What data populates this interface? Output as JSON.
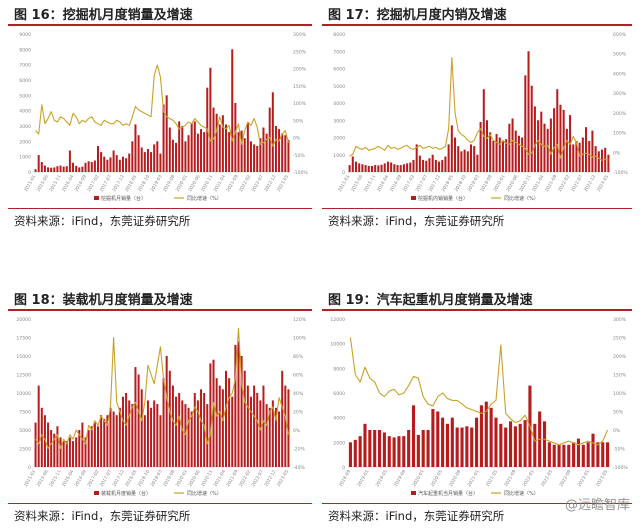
{
  "panels": [
    {
      "title": "图 16：挖掘机月度销量及增速",
      "source": "资料来源：iFind，东莞证券研究所",
      "chart_data": {
        "type": "bar",
        "series": [
          {
            "name": "挖掘机月销量",
            "kind": "bar",
            "axis": "left",
            "values": [
              180,
              1100,
              650,
              420,
              300,
              280,
              300,
              380,
              420,
              350,
              380,
              1400,
              600,
              400,
              300,
              350,
              600,
              700,
              650,
              750,
              1700,
              1300,
              1000,
              800,
              950,
              1400,
              1100,
              800,
              1000,
              900,
              1200,
              2000,
              3100,
              2400,
              1600,
              1300,
              1500,
              1300,
              1800,
              2000,
              1200,
              4400,
              5000,
              2900,
              2100,
              1900,
              3300,
              3000,
              2000,
              2400,
              3200,
              3300,
              2500,
              2800,
              2600,
              5500,
              6800,
              4200,
              3800,
              3100,
              3700,
              3100,
              2600,
              8000,
              4500,
              2600,
              2700,
              2200,
              3200,
              2000,
              1800,
              1700,
              2200,
              2900,
              2500,
              4200,
              5200,
              3000,
              2800,
              2500,
              2400,
              2100
            ]
          },
          {
            "name": "同比增速",
            "kind": "line",
            "axis": "right",
            "values": [
              20,
              10,
              95,
              40,
              55,
              75,
              50,
              45,
              60,
              55,
              45,
              35,
              70,
              60,
              40,
              50,
              45,
              55,
              60,
              45,
              40,
              35,
              50,
              45,
              40,
              40,
              50,
              45,
              35,
              40,
              35,
              60,
              90,
              80,
              75,
              70,
              65,
              60,
              180,
              210,
              175,
              75,
              60,
              55,
              50,
              40,
              25,
              30,
              35,
              45,
              40,
              55,
              45,
              35,
              30,
              25,
              -10,
              -5,
              20,
              60,
              30,
              25,
              35,
              -10,
              15,
              40,
              -20,
              20,
              45,
              35,
              55,
              30,
              -20,
              -15,
              -5,
              0,
              -25,
              -5,
              -10,
              10,
              20,
              -15
            ]
          }
        ],
        "yleft": {
          "ticks": [
            "0",
            "1000",
            "2000",
            "3000",
            "4000",
            "5000",
            "6000",
            "7000",
            "8000",
            "9000"
          ],
          "min": 0,
          "max": 9000
        },
        "yright": {
          "ticks": [
            "-100%",
            "-50%",
            "0%",
            "50%",
            "100%",
            "150%",
            "200%",
            "250%",
            "300%"
          ],
          "min": -100,
          "max": 300
        },
        "xticks": [
          "2015-01",
          "2015-06",
          "2015-11",
          "2016-04",
          "2016-09",
          "2017-02",
          "2017-07",
          "2017-12",
          "2018-05",
          "2018-10",
          "2019-03",
          "2019-08",
          "2020-01",
          "2020-06",
          "2020-11",
          "2021-04",
          "2021-09",
          "2022-02",
          "2022-07",
          "2022-12",
          "2023-05"
        ],
        "legend": [
          "挖掘机月销量（台）",
          "同比增速（%）"
        ],
        "bar_color": "#b71c1c",
        "line_color": "#c9a227"
      }
    },
    {
      "title": "图 17：挖掘机月度内销及增速",
      "source": "资料来源：iFind，东莞证券研究所",
      "chart_data": {
        "type": "bar",
        "series": [
          {
            "name": "挖掘机内销销量",
            "kind": "bar",
            "axis": "left",
            "values": [
              400,
              900,
              600,
              500,
              450,
              400,
              350,
              350,
              400,
              380,
              420,
              500,
              600,
              550,
              450,
              400,
              400,
              450,
              500,
              550,
              700,
              1600,
              950,
              700,
              650,
              800,
              1000,
              700,
              600,
              700,
              900,
              1600,
              2700,
              2000,
              1500,
              1200,
              1300,
              1200,
              1600,
              1500,
              1000,
              2900,
              4800,
              3000,
              2300,
              1800,
              2200,
              2000,
              1800,
              1900,
              2800,
              3100,
              2400,
              2100,
              2000,
              5600,
              7000,
              5000,
              3800,
              3000,
              3500,
              2800,
              2500,
              3100,
              3700,
              4800,
              3900,
              3600,
              2500,
              3300,
              1600,
              1800,
              1700,
              2000,
              2600,
              1800,
              2400,
              1500,
              1200,
              1300,
              1400,
              1000
            ]
          },
          {
            "name": "同比增速",
            "kind": "line",
            "axis": "right",
            "values": [
              -20,
              -10,
              30,
              20,
              15,
              25,
              10,
              15,
              20,
              30,
              20,
              10,
              35,
              20,
              25,
              15,
              20,
              30,
              35,
              20,
              15,
              25,
              35,
              20,
              25,
              30,
              20,
              25,
              15,
              20,
              30,
              120,
              480,
              200,
              110,
              90,
              80,
              60,
              50,
              60,
              100,
              120,
              80,
              70,
              90,
              60,
              50,
              40,
              60,
              45,
              40,
              60,
              50,
              40,
              30,
              20,
              -10,
              -5,
              35,
              60,
              40,
              30,
              35,
              -10,
              25,
              40,
              -30,
              25,
              60,
              40,
              80,
              50,
              -20,
              -10,
              -5,
              -10,
              -25,
              -20,
              -30,
              -40,
              -35,
              -40
            ]
          }
        ],
        "yleft": {
          "ticks": [
            "0",
            "1000",
            "2000",
            "3000",
            "4000",
            "5000",
            "6000",
            "7000",
            "8000"
          ],
          "min": 0,
          "max": 8000
        },
        "yright": {
          "ticks": [
            "-100%",
            "0%",
            "100%",
            "200%",
            "300%",
            "400%",
            "500%",
            "600%"
          ],
          "min": -100,
          "max": 600
        },
        "xticks": [
          "2015-01",
          "2015-06",
          "2015-11",
          "2016-04",
          "2016-09",
          "2017-02",
          "2017-07",
          "2017-12",
          "2018-05",
          "2018-10",
          "2019-03",
          "2019-08",
          "2020-01",
          "2020-06",
          "2020-11",
          "2021-04",
          "2021-09",
          "2022-02",
          "2022-07",
          "2022-12",
          "2023-05"
        ],
        "legend": [
          "挖掘机内销销量（台）",
          "同比增速（%）"
        ],
        "bar_color": "#b71c1c",
        "line_color": "#c9a227"
      }
    },
    {
      "title": "图 18：装载机月度销量及增速",
      "source": "资料来源：iFind，东莞证券研究所",
      "chart_data": {
        "type": "bar",
        "series": [
          {
            "name": "装载机月度销量",
            "kind": "bar",
            "axis": "left",
            "values": [
              6000,
              11000,
              8000,
              7000,
              6000,
              5000,
              4500,
              5500,
              4000,
              3500,
              3500,
              4000,
              3500,
              4000,
              5000,
              6000,
              4000,
              5000,
              5500,
              6000,
              5500,
              7000,
              6500,
              7000,
              8000,
              7500,
              7000,
              8000,
              9500,
              10000,
              9000,
              8500,
              13500,
              12500,
              10500,
              7000,
              9000,
              8000,
              9000,
              8500,
              7000,
              12000,
              15000,
              13000,
              11000,
              9500,
              10000,
              9000,
              8500,
              8000,
              7500,
              10000,
              9000,
              10500,
              10000,
              8500,
              14000,
              14500,
              12000,
              11000,
              10500,
              13000,
              12000,
              9500,
              16500,
              17000,
              15000,
              13000,
              11000,
              9500,
              11000,
              10000,
              9000,
              11000,
              8500,
              8000,
              9000,
              8000,
              7500,
              13000,
              11000,
              10500
            ]
          },
          {
            "name": "同比增速",
            "kind": "line",
            "axis": "right",
            "values": [
              -10,
              -15,
              -5,
              -10,
              -20,
              -15,
              -10,
              -5,
              -20,
              -10,
              -15,
              -5,
              -10,
              0,
              -5,
              -10,
              -15,
              5,
              0,
              10,
              5,
              15,
              10,
              5,
              25,
              100,
              30,
              20,
              10,
              5,
              15,
              25,
              30,
              20,
              10,
              30,
              70,
              60,
              50,
              70,
              90,
              55,
              35,
              20,
              10,
              5,
              15,
              0,
              -5,
              10,
              15,
              25,
              20,
              10,
              5,
              -15,
              -5,
              30,
              15,
              20,
              10,
              25,
              35,
              40,
              55,
              110,
              50,
              30,
              25,
              20,
              15,
              10,
              0,
              10,
              5,
              20,
              25,
              10,
              35,
              25,
              15,
              -5
            ]
          }
        ],
        "yleft": {
          "ticks": [
            "0",
            "2500",
            "5000",
            "7500",
            "10000",
            "12500",
            "15000",
            "17500",
            "20000"
          ],
          "min": 0,
          "max": 20000
        },
        "yright": {
          "ticks": [
            "-40%",
            "-20%",
            "0%",
            "20%",
            "40%",
            "60%",
            "80%",
            "100%",
            "120%"
          ],
          "min": -40,
          "max": 120
        },
        "xticks": [
          "2015-01",
          "2015-06",
          "2015-11",
          "2016-04",
          "2016-09",
          "2017-02",
          "2017-07",
          "2017-12",
          "2018-05",
          "2018-10",
          "2019-03",
          "2019-08",
          "2020-01",
          "2020-06",
          "2020-11",
          "2021-04",
          "2021-09",
          "2022-02",
          "2022-07",
          "2022-12",
          "2023-05"
        ],
        "legend": [
          "装载机月度销量（台）",
          "同比增速（%）"
        ],
        "bar_color": "#b71c1c",
        "line_color": "#c9a227"
      }
    },
    {
      "title": "图 19：汽车起重机月度销量及增速",
      "source": "资料来源：iFind，东莞证券研究所",
      "chart_data": {
        "type": "bar",
        "series": [
          {
            "name": "汽车起重机当月销量",
            "kind": "bar",
            "axis": "left",
            "values": [
              2000,
              2200,
              2500,
              3500,
              3000,
              3000,
              3000,
              2800,
              2500,
              2400,
              2500,
              2500,
              3000,
              5000,
              2600,
              3000,
              3000,
              4700,
              4500,
              4000,
              3500,
              4000,
              3200,
              3200,
              3300,
              3200,
              4000,
              5000,
              5300,
              4800,
              4000,
              3500,
              3200,
              3700,
              3300,
              3500,
              3800,
              6600,
              3500,
              4500,
              3700,
              2000,
              1800,
              1800,
              1800,
              1800,
              2000,
              2300,
              1800,
              2000,
              2700,
              2000,
              2000,
              2000
            ]
          },
          {
            "name": "同比增速",
            "kind": "line",
            "axis": "right",
            "values": [
              250,
              150,
              130,
              170,
              140,
              130,
              100,
              90,
              105,
              110,
              95,
              100,
              120,
              145,
              140,
              90,
              70,
              65,
              90,
              100,
              85,
              80,
              80,
              70,
              60,
              55,
              50,
              45,
              50,
              70,
              80,
              230,
              45,
              30,
              20,
              25,
              40,
              10,
              -30,
              -25,
              -25,
              -30,
              -35,
              -40,
              -35,
              -30,
              -35,
              -40,
              -35,
              -30,
              -35,
              -40,
              -30,
              0
            ]
          }
        ],
        "yleft": {
          "ticks": [
            "0",
            "2000",
            "4000",
            "6000",
            "8000",
            "10000",
            "12000"
          ],
          "min": 0,
          "max": 12000
        },
        "yright": {
          "ticks": [
            "-100%",
            "-50%",
            "0%",
            "50%",
            "100%",
            "150%",
            "200%",
            "250%",
            "300%"
          ],
          "min": -100,
          "max": 300
        },
        "xticks": [
          "2018-09",
          "2019-01",
          "2019-05",
          "2019-09",
          "2020-01",
          "2020-05",
          "2020-09",
          "2021-01",
          "2021-05",
          "2021-09",
          "2022-01",
          "2022-05",
          "2022-09",
          "2023-01",
          "2023-05"
        ],
        "legend": [
          "汽车起重机当月销量（台）",
          "同比增速（%）"
        ],
        "bar_color": "#b71c1c",
        "line_color": "#c9a227"
      }
    }
  ],
  "watermark": "@远瞻智库"
}
